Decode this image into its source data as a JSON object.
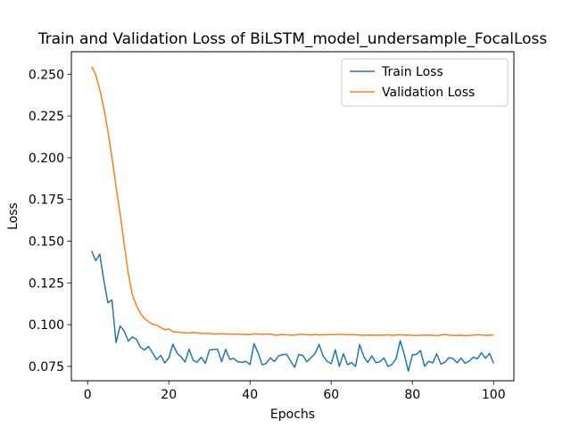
{
  "chart_data": {
    "type": "line",
    "title": "Train and Validation Loss of BiLSTM_model_undersample_FocalLoss",
    "xlabel": "Epochs",
    "ylabel": "Loss",
    "xlim": [
      -4,
      105
    ],
    "ylim": [
      0.0664,
      0.2635
    ],
    "xticks": [
      0,
      20,
      40,
      60,
      80,
      100
    ],
    "xtick_labels": [
      "0",
      "20",
      "40",
      "60",
      "80",
      "100"
    ],
    "yticks": [
      0.075,
      0.1,
      0.125,
      0.15,
      0.175,
      0.2,
      0.225,
      0.25
    ],
    "ytick_labels": [
      "0.075",
      "0.100",
      "0.125",
      "0.150",
      "0.175",
      "0.200",
      "0.225",
      "0.250"
    ],
    "grid": false,
    "legend_position": "top-right",
    "x": [
      1,
      2,
      3,
      4,
      5,
      6,
      7,
      8,
      9,
      10,
      11,
      12,
      13,
      14,
      15,
      16,
      17,
      18,
      19,
      20,
      21,
      22,
      23,
      24,
      25,
      26,
      27,
      28,
      29,
      30,
      31,
      32,
      33,
      34,
      35,
      36,
      37,
      38,
      39,
      40,
      41,
      42,
      43,
      44,
      45,
      46,
      47,
      48,
      49,
      50,
      51,
      52,
      53,
      54,
      55,
      56,
      57,
      58,
      59,
      60,
      61,
      62,
      63,
      64,
      65,
      66,
      67,
      68,
      69,
      70,
      71,
      72,
      73,
      74,
      75,
      76,
      77,
      78,
      79,
      80,
      81,
      82,
      83,
      84,
      85,
      86,
      87,
      88,
      89,
      90,
      91,
      92,
      93,
      94,
      95,
      96,
      97,
      98,
      99,
      100
    ],
    "series": [
      {
        "name": "Train Loss",
        "color": "#1f77b4",
        "values": [
          0.1442,
          0.1383,
          0.1422,
          0.1265,
          0.1131,
          0.1148,
          0.0893,
          0.0992,
          0.0962,
          0.0902,
          0.0926,
          0.0913,
          0.0866,
          0.0848,
          0.0869,
          0.0831,
          0.079,
          0.0816,
          0.0771,
          0.08,
          0.0883,
          0.0831,
          0.0808,
          0.0776,
          0.0853,
          0.0786,
          0.0776,
          0.0805,
          0.0768,
          0.0848,
          0.0851,
          0.0853,
          0.0779,
          0.0852,
          0.0793,
          0.0797,
          0.0778,
          0.0774,
          0.078,
          0.0761,
          0.0886,
          0.083,
          0.076,
          0.0768,
          0.0801,
          0.0779,
          0.0812,
          0.0821,
          0.0822,
          0.0782,
          0.0744,
          0.0821,
          0.0816,
          0.0778,
          0.0801,
          0.0826,
          0.0882,
          0.0812,
          0.078,
          0.0766,
          0.085,
          0.075,
          0.0826,
          0.076,
          0.0773,
          0.075,
          0.0881,
          0.081,
          0.0773,
          0.0813,
          0.0772,
          0.0778,
          0.08,
          0.075,
          0.0762,
          0.0798,
          0.0904,
          0.0822,
          0.0722,
          0.0819,
          0.0822,
          0.0845,
          0.075,
          0.078,
          0.0771,
          0.0825,
          0.0764,
          0.0774,
          0.0802,
          0.0797,
          0.0772,
          0.0799,
          0.0768,
          0.0782,
          0.0805,
          0.0795,
          0.0832,
          0.0798,
          0.0828,
          0.0768
        ]
      },
      {
        "name": "Validation Loss",
        "color": "#ff7f0e",
        "values": [
          0.2547,
          0.2497,
          0.2407,
          0.2297,
          0.216,
          0.2002,
          0.1826,
          0.1665,
          0.1484,
          0.131,
          0.118,
          0.1116,
          0.1068,
          0.1038,
          0.1018,
          0.1002,
          0.0998,
          0.0983,
          0.097,
          0.0974,
          0.0958,
          0.0955,
          0.0953,
          0.0951,
          0.095,
          0.0954,
          0.095,
          0.0948,
          0.0947,
          0.0948,
          0.0943,
          0.0945,
          0.0946,
          0.0944,
          0.0944,
          0.0942,
          0.0944,
          0.0941,
          0.0942,
          0.094,
          0.0945,
          0.0944,
          0.0942,
          0.0943,
          0.0944,
          0.0937,
          0.0938,
          0.0941,
          0.0939,
          0.0938,
          0.0937,
          0.0942,
          0.0942,
          0.094,
          0.0938,
          0.0941,
          0.0938,
          0.094,
          0.0939,
          0.0941,
          0.094,
          0.0942,
          0.0941,
          0.094,
          0.094,
          0.0939,
          0.0938,
          0.0936,
          0.0938,
          0.0937,
          0.0936,
          0.0938,
          0.0937,
          0.0939,
          0.0936,
          0.0938,
          0.094,
          0.0937,
          0.0938,
          0.0936,
          0.0935,
          0.0936,
          0.0938,
          0.0937,
          0.0936,
          0.0934,
          0.0938,
          0.0941,
          0.0937,
          0.0936,
          0.0936,
          0.0937,
          0.0934,
          0.0935,
          0.0937,
          0.094,
          0.0938,
          0.0936,
          0.0938,
          0.0937
        ]
      }
    ]
  }
}
